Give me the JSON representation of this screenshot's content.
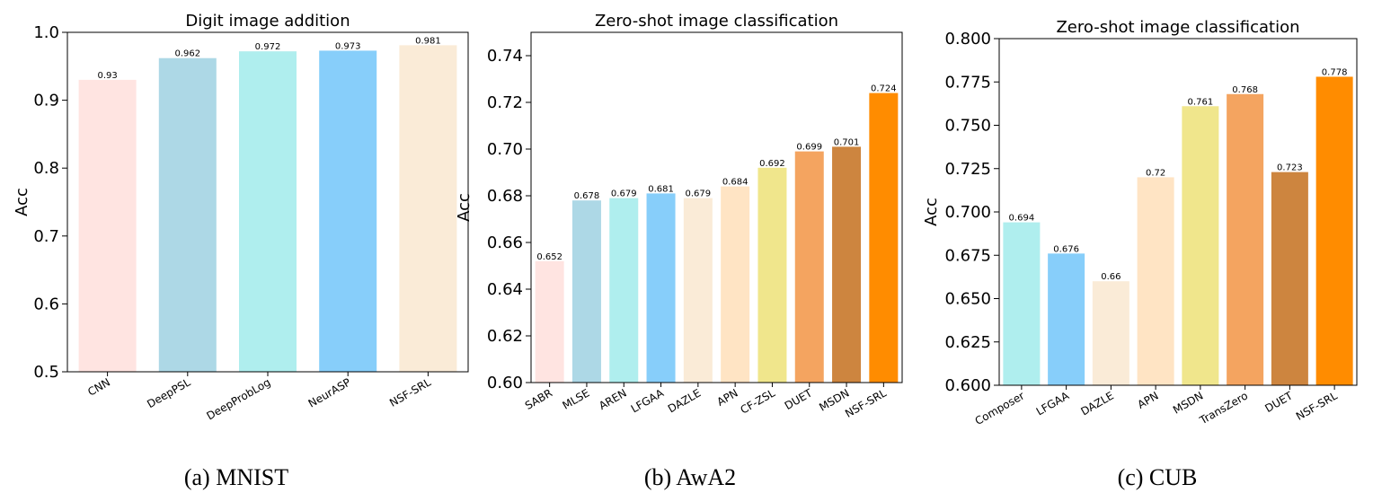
{
  "captions": [
    "(a) MNIST",
    "(b) AwA2",
    "(c) CUB"
  ],
  "chart_data": [
    {
      "type": "bar",
      "title": "Digit image addition",
      "ylabel": "Acc",
      "xlabel": "",
      "ylim": [
        0.5,
        1.0
      ],
      "yticks": [
        "0.5",
        "0.6",
        "0.7",
        "0.8",
        "0.9",
        "1.0"
      ],
      "categories": [
        "CNN",
        "DeepPSL",
        "DeepProbLog",
        "NeurASP",
        "NSF-SRL"
      ],
      "values": [
        0.93,
        0.962,
        0.972,
        0.973,
        0.981
      ],
      "value_labels": [
        "0.93",
        "0.962",
        "0.972",
        "0.973",
        "0.981"
      ],
      "colors": [
        "#ffe4e1",
        "#add8e6",
        "#afeeee",
        "#87cefa",
        "#faebd7"
      ],
      "grid": false
    },
    {
      "type": "bar",
      "title": "Zero-shot image classification",
      "ylabel": "Acc",
      "xlabel": "",
      "ylim": [
        0.6,
        0.75
      ],
      "yticks": [
        "0.60",
        "0.62",
        "0.64",
        "0.66",
        "0.68",
        "0.70",
        "0.72",
        "0.74"
      ],
      "categories": [
        "SABR",
        "MLSE",
        "AREN",
        "LFGAA",
        "DAZLE",
        "APN",
        "CF-ZSL",
        "DUET",
        "MSDN",
        "NSF-SRL"
      ],
      "values": [
        0.652,
        0.678,
        0.679,
        0.681,
        0.679,
        0.684,
        0.692,
        0.699,
        0.701,
        0.724
      ],
      "value_labels": [
        "0.652",
        "0.678",
        "0.679",
        "0.681",
        "0.679",
        "0.684",
        "0.692",
        "0.699",
        "0.701",
        "0.724"
      ],
      "colors": [
        "#ffe4e1",
        "#add8e6",
        "#afeeee",
        "#87cefa",
        "#faebd7",
        "#ffe4c4",
        "#f0e68c",
        "#f4a460",
        "#cd853f",
        "#ff8c00"
      ],
      "grid": false
    },
    {
      "type": "bar",
      "title": "Zero-shot image classification",
      "ylabel": "Acc",
      "xlabel": "",
      "ylim": [
        0.6,
        0.8
      ],
      "yticks": [
        "0.600",
        "0.625",
        "0.650",
        "0.675",
        "0.700",
        "0.725",
        "0.750",
        "0.775",
        "0.800"
      ],
      "categories": [
        "Composer",
        "LFGAA",
        "DAZLE",
        "APN",
        "MSDN",
        "TransZero",
        "DUET",
        "NSF-SRL"
      ],
      "values": [
        0.694,
        0.676,
        0.66,
        0.72,
        0.761,
        0.768,
        0.723,
        0.778
      ],
      "value_labels": [
        "0.694",
        "0.676",
        "0.66",
        "0.72",
        "0.761",
        "0.768",
        "0.723",
        "0.778"
      ],
      "colors": [
        "#afeeee",
        "#87cefa",
        "#faebd7",
        "#ffe4c4",
        "#f0e68c",
        "#f4a460",
        "#cd853f",
        "#ff8c00"
      ],
      "grid": false
    }
  ]
}
